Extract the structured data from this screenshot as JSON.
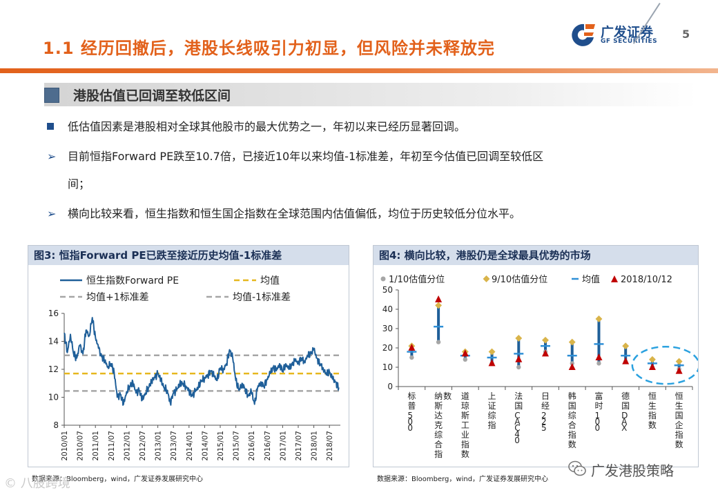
{
  "header": {
    "title": "1.1 经历回撤后，港股长线吸引力初显，但风险并未释放完",
    "logo_cn": "广发证券",
    "logo_en": "GF SECURITIES",
    "page_number": "5",
    "colors": {
      "accent": "#E2611B",
      "brand": "#1F4E8C"
    }
  },
  "section": {
    "heading": "港股估值已回调至较低区间"
  },
  "bullets": [
    {
      "marker": "square",
      "text": "低估值因素是港股相对全球其他股市的最大优势之一，年初以来已经历显著回调。"
    },
    {
      "marker": "arrow",
      "text": "目前恒指Forward PE跌至10.7倍，已接近10年以来均值-1标准差，年初至今估值已回调至较低区",
      "text2": "间；"
    },
    {
      "marker": "arrow",
      "text": "横向比较来看，恒生指数和恒生国企指数在全球范围内估值偏低，均位于历史较低分位水平。"
    }
  ],
  "figure3": {
    "title": "图3:  恒指Forward PE已跌至接近历史均值-1标准差",
    "source": "数据来源：Bloomberg，wind，广发证券发展研究中心"
  },
  "figure4": {
    "title": "图4:  横向比较，港股仍是全球最具优势的市场",
    "source": "数据来源：Bloomberg，wind，广发证券发展研究中心"
  },
  "watermarks": {
    "left": "© 八股跨境",
    "right": "广发港股策略"
  },
  "chart_data": [
    {
      "type": "line",
      "legend": [
        "恒生指数Forward PE",
        "均值",
        "均值+1标准差",
        "均值-1标准差"
      ],
      "ylim": [
        8,
        16
      ],
      "yticks": [
        8,
        10,
        12,
        14,
        16
      ],
      "xticks": [
        "2010/01",
        "2010/07",
        "2011/01",
        "2011/07",
        "2012/01",
        "2012/07",
        "2013/01",
        "2013/07",
        "2014/01",
        "2014/07",
        "2015/01",
        "2015/07",
        "2016/01",
        "2016/07",
        "2017/01",
        "2017/07",
        "2018/01",
        "2018/07"
      ],
      "mean": 11.7,
      "plus1sd": 13.0,
      "minus1sd": 10.45,
      "series": [
        {
          "name": "恒生指数Forward PE",
          "color": "#1F5F99",
          "x": [
            2010.0,
            2010.1,
            2010.2,
            2010.3,
            2010.4,
            2010.5,
            2010.6,
            2010.7,
            2010.8,
            2010.9,
            2011.0,
            2011.1,
            2011.2,
            2011.3,
            2011.4,
            2011.5,
            2011.6,
            2011.7,
            2011.8,
            2011.9,
            2012.0,
            2012.1,
            2012.2,
            2012.3,
            2012.4,
            2012.5,
            2012.6,
            2012.7,
            2012.8,
            2012.9,
            2013.0,
            2013.1,
            2013.2,
            2013.3,
            2013.4,
            2013.5,
            2013.6,
            2013.7,
            2013.8,
            2013.9,
            2014.0,
            2014.1,
            2014.2,
            2014.3,
            2014.4,
            2014.5,
            2014.6,
            2014.7,
            2014.8,
            2014.9,
            2015.0,
            2015.1,
            2015.2,
            2015.3,
            2015.4,
            2015.5,
            2015.6,
            2015.7,
            2015.8,
            2015.9,
            2016.0,
            2016.1,
            2016.2,
            2016.3,
            2016.4,
            2016.5,
            2016.6,
            2016.7,
            2016.8,
            2016.9,
            2017.0,
            2017.1,
            2017.2,
            2017.3,
            2017.4,
            2017.5,
            2017.6,
            2017.7,
            2017.8,
            2017.9,
            2018.0,
            2018.1,
            2018.2,
            2018.3,
            2018.4,
            2018.5,
            2018.6,
            2018.7,
            2018.8
          ],
          "y": [
            14.6,
            13.2,
            14.5,
            13.1,
            12.8,
            13.7,
            13.1,
            14.8,
            14.4,
            15.7,
            14.3,
            13.5,
            12.9,
            12.6,
            12.2,
            12.4,
            11.8,
            10.0,
            10.2,
            9.5,
            10.4,
            10.8,
            11.1,
            10.3,
            10.5,
            9.8,
            10.3,
            10.7,
            11.2,
            11.4,
            11.7,
            11.2,
            10.7,
            10.5,
            9.6,
            10.3,
            10.5,
            10.9,
            11.0,
            10.8,
            10.5,
            10.1,
            10.4,
            10.7,
            11.2,
            11.4,
            11.6,
            11.9,
            11.5,
            11.2,
            12.1,
            12.0,
            12.4,
            13.4,
            12.8,
            11.2,
            10.5,
            11.0,
            10.6,
            10.1,
            10.4,
            9.5,
            10.7,
            11.1,
            10.8,
            11.3,
            11.7,
            12.1,
            11.9,
            12.4,
            11.9,
            12.4,
            12.0,
            12.3,
            12.6,
            12.5,
            12.8,
            12.6,
            12.9,
            13.1,
            13.4,
            12.8,
            12.4,
            12.1,
            11.6,
            11.8,
            11.3,
            11.1,
            10.7
          ]
        }
      ]
    },
    {
      "type": "scatter",
      "legend": [
        "1/10估值分位",
        "9/10估值分位",
        "均值",
        "2018/10/12"
      ],
      "ylim": [
        0,
        50
      ],
      "yticks": [
        0,
        10,
        20,
        30,
        40,
        50
      ],
      "categories": [
        "标普500",
        "纳斯达克综合指数",
        "道琼斯工业指数",
        "上证综指",
        "法国CAC40",
        "日经225",
        "韩国综合指数",
        "富时100",
        "德国DAX",
        "恒生指数",
        "恒生国企指数"
      ],
      "highlight": [
        "恒生指数",
        "恒生国企指数"
      ],
      "series": [
        {
          "name": "1/10估值分位",
          "color": "#A6A6A6",
          "values": [
            15,
            23,
            14,
            12,
            10,
            18,
            12,
            12,
            13,
            10,
            9
          ]
        },
        {
          "name": "9/10估值分位",
          "color": "#D9B44A",
          "values": [
            21,
            42,
            18,
            18,
            25,
            24,
            23,
            35,
            21,
            14,
            13
          ]
        },
        {
          "name": "均值",
          "color": "#2E8FD6",
          "values": [
            18,
            31,
            16,
            15,
            17,
            21,
            16,
            22,
            16,
            12,
            11
          ]
        },
        {
          "name": "2018/10/12",
          "color": "#C00000",
          "values": [
            20,
            45,
            17,
            12,
            14,
            17,
            10,
            15,
            13,
            10,
            8
          ]
        }
      ]
    }
  ]
}
